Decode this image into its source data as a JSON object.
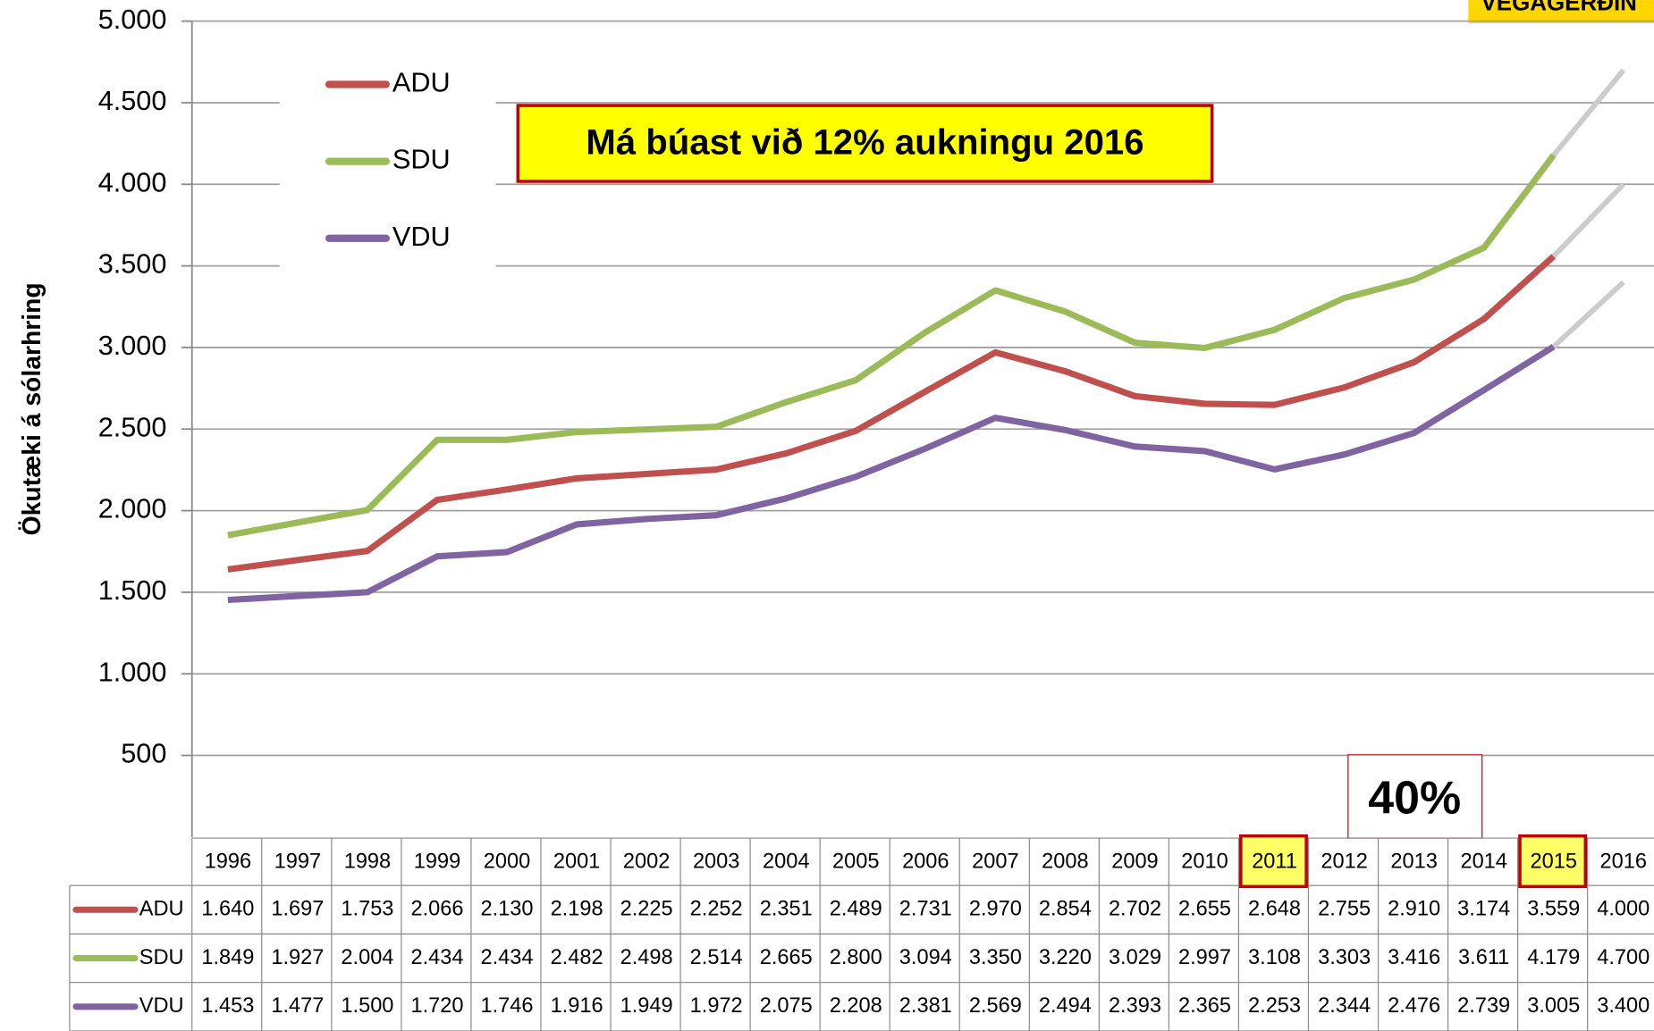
{
  "chart_data": {
    "type": "line",
    "brand": "VEGAGERÐIN",
    "y_label": "Ökutæki á sólarhring",
    "annotations": [
      "Má búast við 12% aukningu 2016",
      "40%"
    ],
    "categories": [
      "1996",
      "1997",
      "1998",
      "1999",
      "2000",
      "2001",
      "2002",
      "2003",
      "2004",
      "2005",
      "2006",
      "2007",
      "2008",
      "2009",
      "2010",
      "2011",
      "2012",
      "2013",
      "2014",
      "2015",
      "2016"
    ],
    "highlighted_categories": [
      15,
      19
    ],
    "projection_color": "#cccccc",
    "series": [
      {
        "name": "ADU",
        "color": "#c0504d",
        "values": [
          1640,
          1697,
          1753,
          2066,
          2130,
          2198,
          2225,
          2252,
          2351,
          2489,
          2731,
          2970,
          2854,
          2702,
          2655,
          2648,
          2755,
          2910,
          3174,
          3559,
          4000
        ],
        "value_labels": [
          "1.640",
          "1.697",
          "1.753",
          "2.066",
          "2.130",
          "2.198",
          "2.225",
          "2.252",
          "2.351",
          "2.489",
          "2.731",
          "2.970",
          "2.854",
          "2.702",
          "2.655",
          "2.648",
          "2.755",
          "2.910",
          "3.174",
          "3.559",
          "4.000"
        ]
      },
      {
        "name": "SDU",
        "color": "#9bbb59",
        "values": [
          1849,
          1927,
          2004,
          2434,
          2434,
          2482,
          2498,
          2514,
          2665,
          2800,
          3094,
          3350,
          3220,
          3029,
          2997,
          3108,
          3303,
          3416,
          3611,
          4179,
          4700
        ],
        "value_labels": [
          "1.849",
          "1.927",
          "2.004",
          "2.434",
          "2.434",
          "2.482",
          "2.498",
          "2.514",
          "2.665",
          "2.800",
          "3.094",
          "3.350",
          "3.220",
          "3.029",
          "2.997",
          "3.108",
          "3.303",
          "3.416",
          "3.611",
          "4.179",
          "4.700"
        ]
      },
      {
        "name": "VDU",
        "color": "#8064a2",
        "values": [
          1453,
          1477,
          1500,
          1720,
          1746,
          1916,
          1949,
          1972,
          2075,
          2208,
          2381,
          2569,
          2494,
          2393,
          2365,
          2253,
          2344,
          2476,
          2739,
          3005,
          3400
        ],
        "value_labels": [
          "1.453",
          "1.477",
          "1.500",
          "1.720",
          "1.746",
          "1.916",
          "1.949",
          "1.972",
          "2.075",
          "2.208",
          "2.381",
          "2.569",
          "2.494",
          "2.393",
          "2.365",
          "2.253",
          "2.344",
          "2.476",
          "2.739",
          "3.005",
          "3.400"
        ]
      }
    ],
    "ylim": [
      0,
      5000
    ],
    "yticks": [
      {
        "value": 500,
        "label": "500"
      },
      {
        "value": 1000,
        "label": "1.000"
      },
      {
        "value": 1500,
        "label": "1.500"
      },
      {
        "value": 2000,
        "label": "2.000"
      },
      {
        "value": 2500,
        "label": "2.500"
      },
      {
        "value": 3000,
        "label": "3.000"
      },
      {
        "value": 3500,
        "label": "3.500"
      },
      {
        "value": 4000,
        "label": "4.000"
      },
      {
        "value": 4500,
        "label": "4.500"
      },
      {
        "value": 5000,
        "label": "5.000"
      }
    ],
    "grid": true
  }
}
